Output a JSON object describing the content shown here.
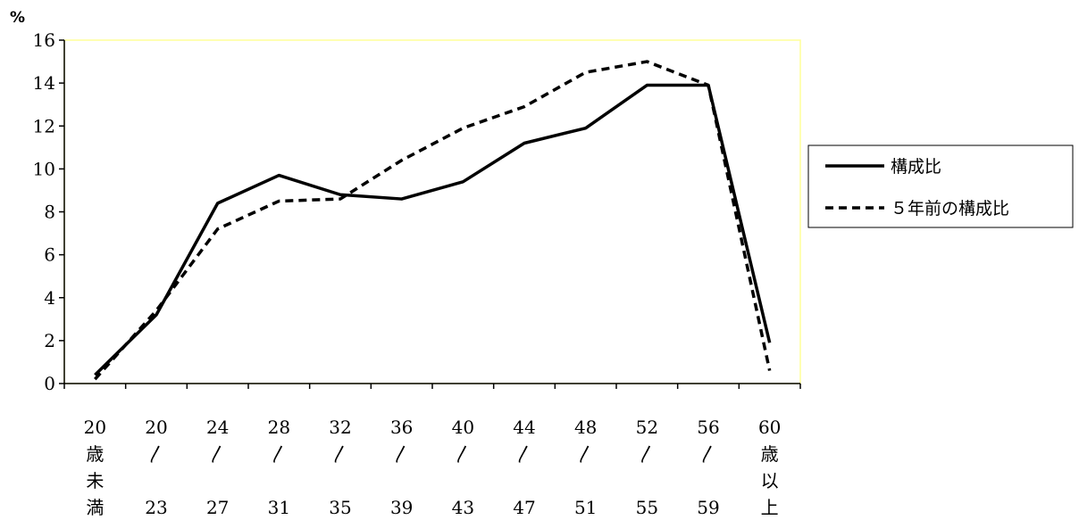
{
  "chart_data": {
    "type": "line",
    "ylabel": "%",
    "ylim": [
      0,
      16
    ],
    "yticks": [
      0,
      2,
      4,
      6,
      8,
      10,
      12,
      14,
      16
    ],
    "categories": [
      [
        "20",
        "歳",
        "未",
        "満"
      ],
      [
        "20",
        "〳",
        "",
        "23"
      ],
      [
        "24",
        "〳",
        "",
        "27"
      ],
      [
        "28",
        "〳",
        "",
        "31"
      ],
      [
        "32",
        "〳",
        "",
        "35"
      ],
      [
        "36",
        "〳",
        "",
        "39"
      ],
      [
        "40",
        "〳",
        "",
        "43"
      ],
      [
        "44",
        "〳",
        "",
        "47"
      ],
      [
        "48",
        "〳",
        "",
        "51"
      ],
      [
        "52",
        "〳",
        "",
        "55"
      ],
      [
        "56",
        "〳",
        "",
        "59"
      ],
      [
        "60",
        "歳",
        "以",
        "上"
      ]
    ],
    "series": [
      {
        "name": "構成比",
        "style": "solid",
        "values": [
          0.4,
          3.2,
          8.4,
          9.7,
          8.8,
          8.6,
          9.4,
          11.2,
          11.9,
          13.9,
          13.9,
          1.9
        ]
      },
      {
        "name": "５年前の構成比",
        "style": "dashed",
        "values": [
          0.2,
          3.4,
          7.2,
          8.5,
          8.6,
          10.4,
          11.9,
          12.9,
          14.5,
          15.0,
          13.9,
          0.6
        ]
      }
    ],
    "legend_position": "right",
    "plot_border_color": "#ffff99",
    "line_color": "#000000",
    "grid": false
  }
}
